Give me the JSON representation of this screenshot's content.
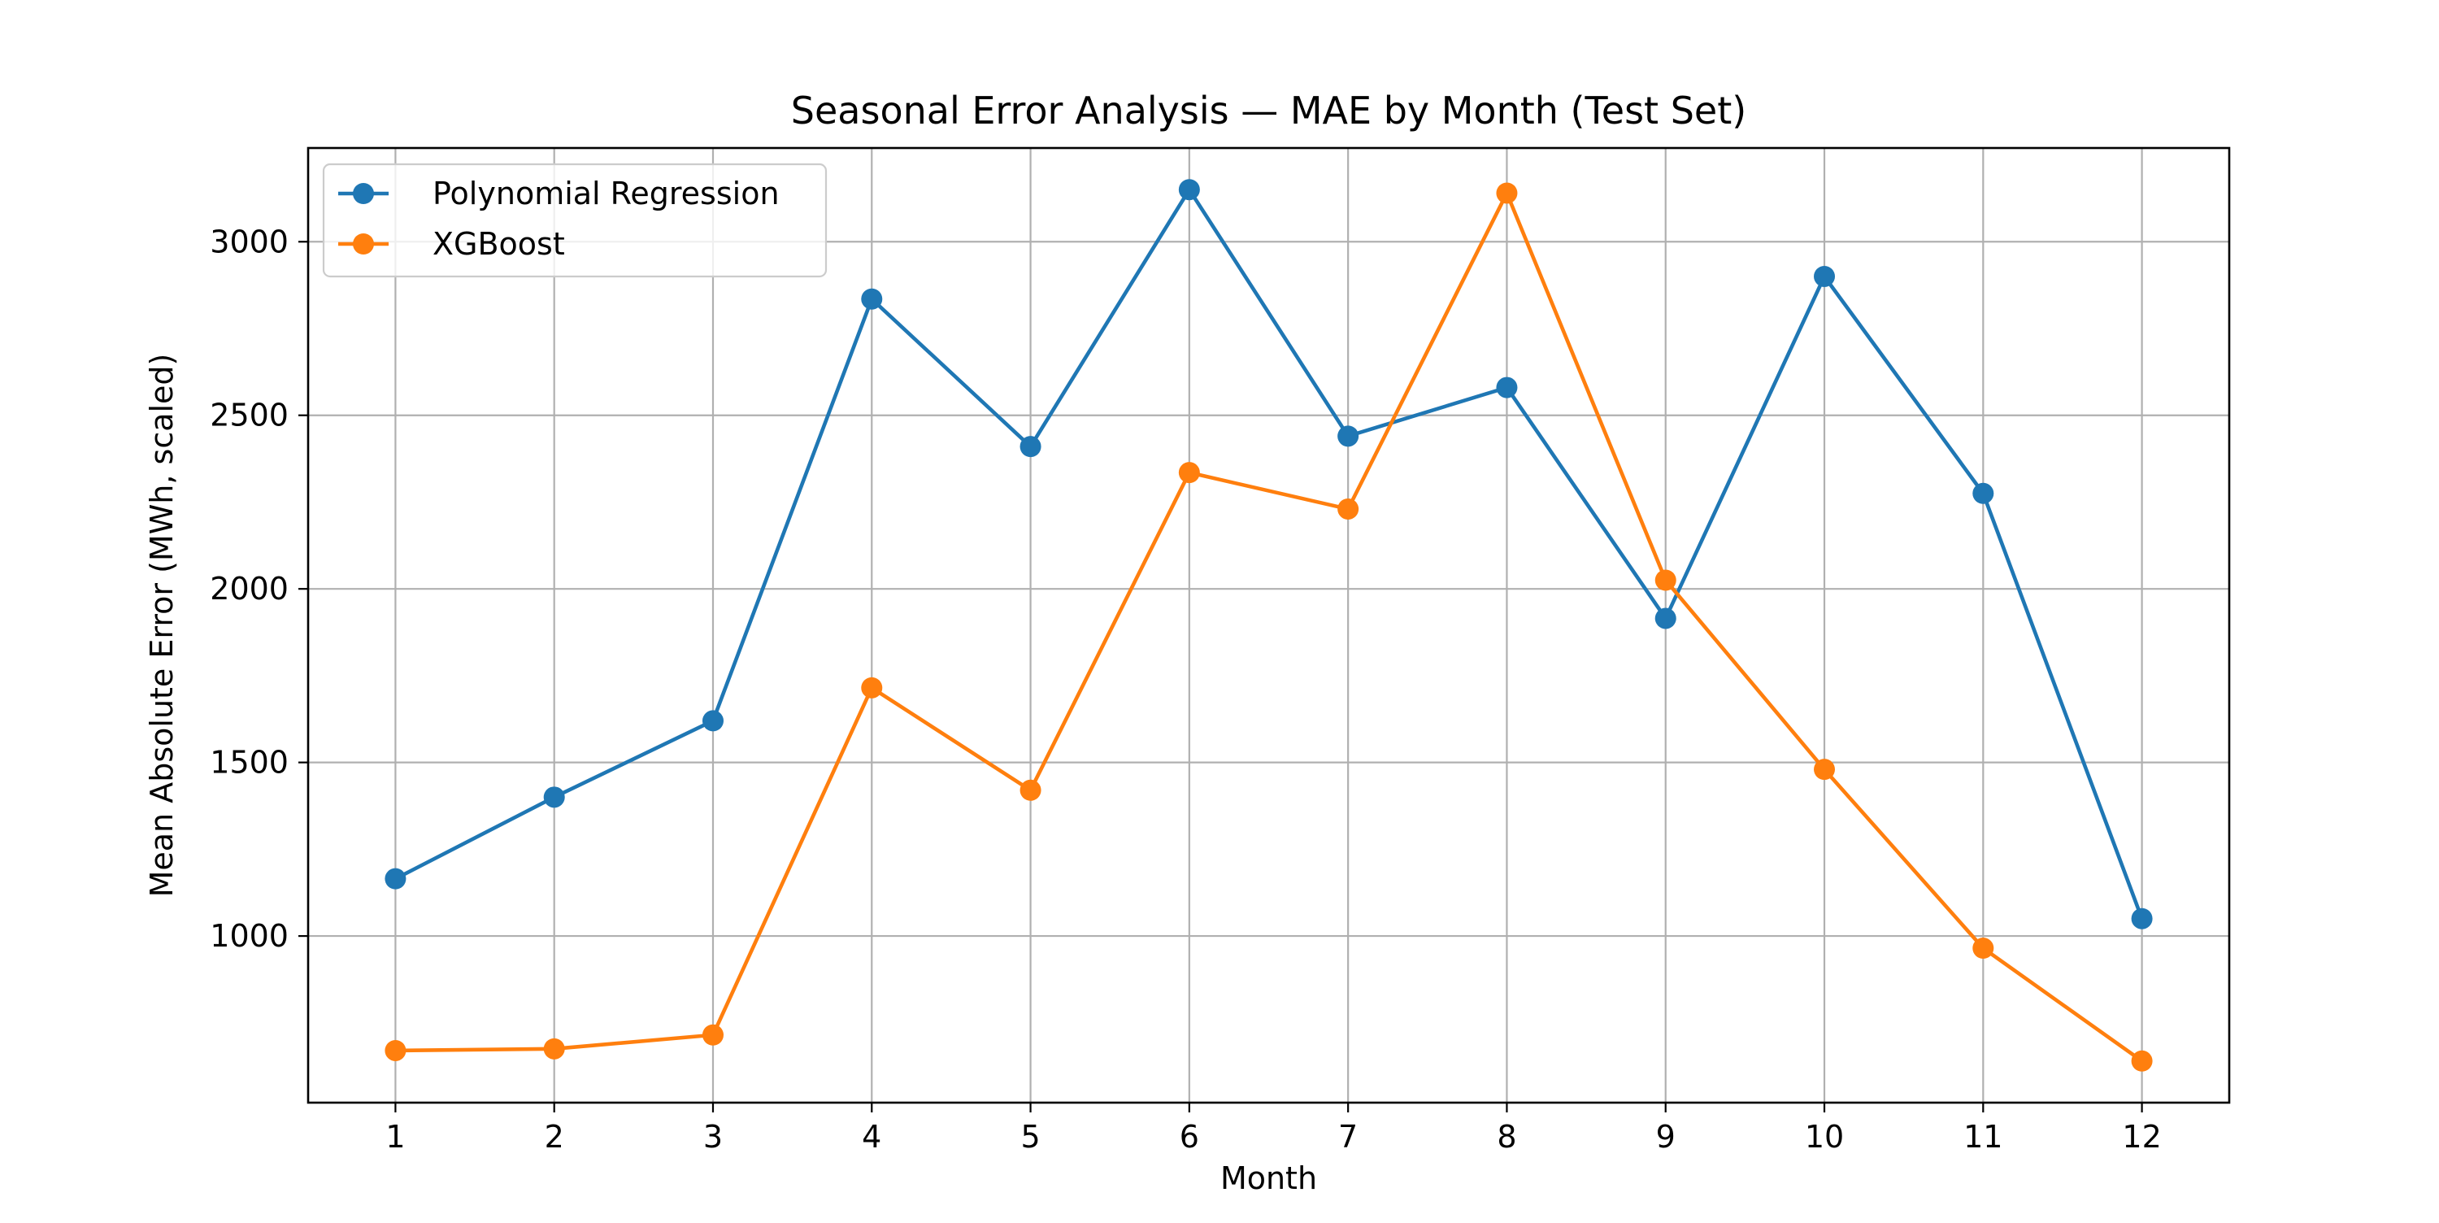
{
  "chart_data": {
    "type": "line",
    "title": "Seasonal Error Analysis — MAE by Month (Test Set)",
    "xlabel": "Month",
    "ylabel": "Mean Absolute Error (MWh, scaled)",
    "x": [
      1,
      2,
      3,
      4,
      5,
      6,
      7,
      8,
      9,
      10,
      11,
      12
    ],
    "x_ticks": [
      "1",
      "2",
      "3",
      "4",
      "5",
      "6",
      "7",
      "8",
      "9",
      "10",
      "11",
      "12"
    ],
    "y_ticks": [
      1000,
      1500,
      2000,
      2500,
      3000
    ],
    "xlim": [
      0.45,
      12.55
    ],
    "ylim": [
      520,
      3270
    ],
    "grid": true,
    "legend_placement": "top-left",
    "series": [
      {
        "name": "Polynomial Regression",
        "color": "#1f77b4",
        "marker": "circle",
        "values": [
          1165,
          1400,
          1620,
          2835,
          2410,
          3150,
          2440,
          2580,
          1915,
          2900,
          2275,
          1050
        ]
      },
      {
        "name": "XGBoost",
        "color": "#ff7f0e",
        "marker": "circle",
        "values": [
          670,
          675,
          715,
          1715,
          1420,
          2335,
          2230,
          3140,
          2025,
          1480,
          965,
          640
        ]
      }
    ]
  }
}
